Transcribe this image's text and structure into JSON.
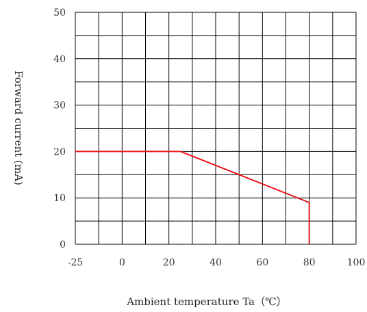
{
  "chart_data": {
    "type": "line",
    "title": "",
    "xlabel": "Ambient temperature Ta（℃）",
    "ylabel": "Forward current (mA)",
    "xlim": [
      -25,
      100
    ],
    "ylim": [
      0,
      50
    ],
    "x_ticks": [
      -25,
      0,
      20,
      40,
      60,
      80,
      100
    ],
    "y_ticks": [
      0,
      10,
      20,
      30,
      40,
      50
    ],
    "x_tick_labels": [
      "-25",
      "0",
      "20",
      "40",
      "60",
      "80",
      "100"
    ],
    "y_tick_labels": [
      "0",
      "10",
      "20",
      "30",
      "40",
      "50"
    ],
    "grid": true,
    "grid_x_step": 10,
    "grid_y_step": 5,
    "legend": "none",
    "series": [
      {
        "color": "#e8161c",
        "x": [
          -25,
          25,
          80,
          80
        ],
        "y": [
          20,
          20,
          9,
          0
        ]
      }
    ]
  }
}
